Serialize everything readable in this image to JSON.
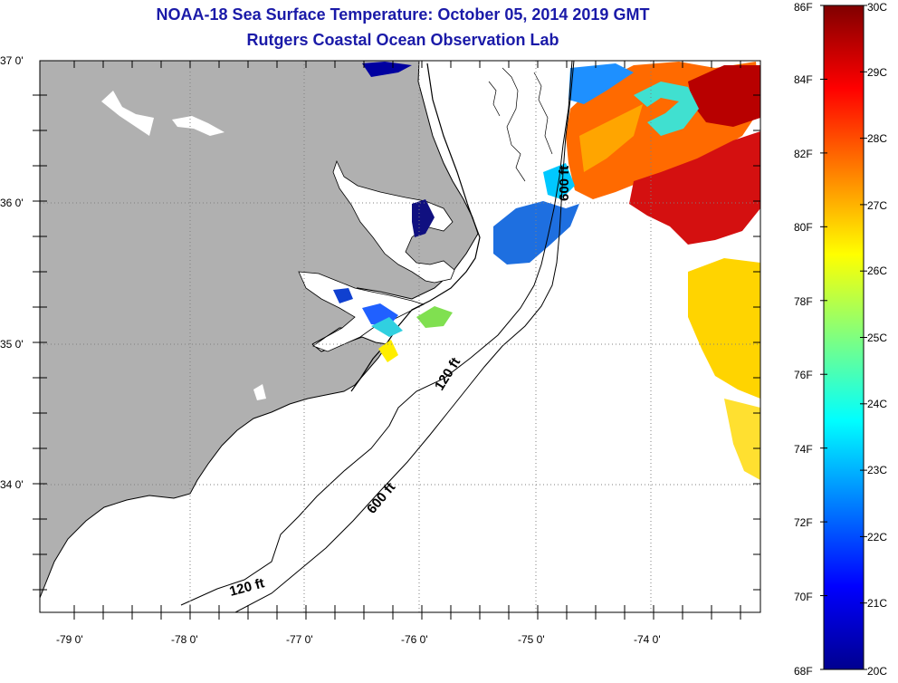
{
  "header": {
    "title": "NOAA-18 Sea Surface Temperature:  October 05, 2014 2019 GMT",
    "subtitle": "Rutgers Coastal Ocean Observation Lab"
  },
  "map": {
    "lat_labels": [
      "37 0'",
      "36 0'",
      "35 0'",
      "34 0'"
    ],
    "lon_labels": [
      "-79 0'",
      "-78 0'",
      "-77 0'",
      "-76 0'",
      "-75 0'",
      "-74 0'"
    ],
    "lat_range": [
      33.15,
      37.0
    ],
    "lon_range": [
      -79.3,
      -73.2
    ],
    "contours": [
      {
        "label": "120 ft"
      },
      {
        "label": "600 ft"
      },
      {
        "label": "120 ft"
      },
      {
        "label": "600 ft"
      }
    ],
    "colors": {
      "land": "#b0b0b0",
      "ocean": "#ffffff",
      "coast": "#000000"
    }
  },
  "colorbar": {
    "fahrenheit_labels": [
      "86F",
      "84F",
      "82F",
      "80F",
      "78F",
      "76F",
      "74F",
      "72F",
      "70F",
      "68F"
    ],
    "celsius_labels": [
      "30C",
      "29C",
      "28C",
      "27C",
      "26C",
      "25C",
      "24C",
      "23C",
      "22C",
      "21C",
      "20C"
    ],
    "range_c": [
      20,
      30
    ],
    "range_f": [
      68,
      86
    ],
    "colormap": "jet"
  }
}
